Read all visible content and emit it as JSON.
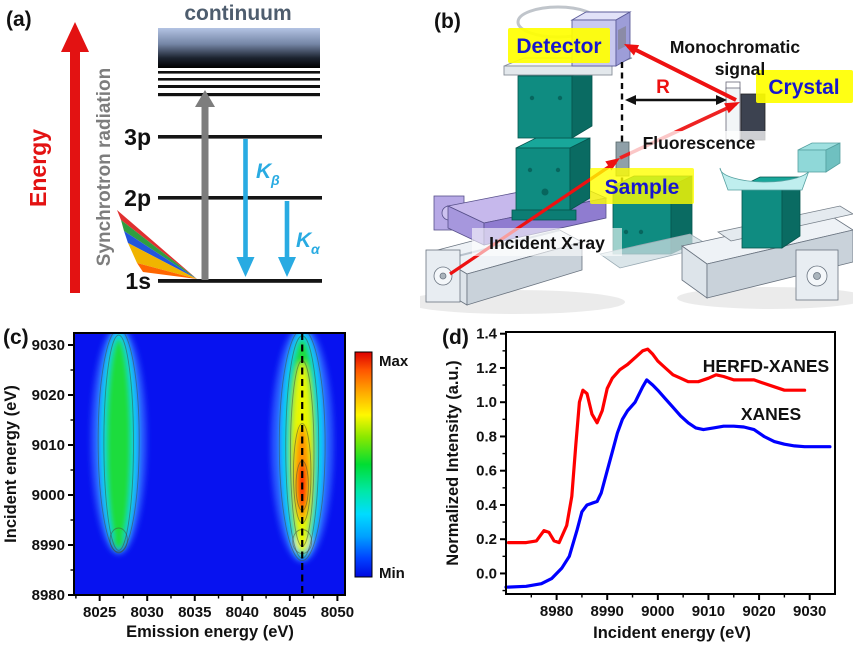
{
  "figure": {
    "panel_a": {
      "tag": "(a)",
      "energy_arrow_label": "Energy",
      "synchrotron_label": "Synchrotron radiation",
      "continuum_label": "continuum",
      "level_3p": "3p",
      "level_2p": "2p",
      "level_1s": "1s",
      "k_letter": "K",
      "beta_sub": "β",
      "alpha_sub": "α",
      "colors": {
        "energy_red": "#e31212",
        "arrow_cyan": "#29abe2",
        "synchrotron_gray": "#7d7d7d",
        "continuum_text": "#4e5d6e"
      }
    },
    "panel_b": {
      "tag": "(b)",
      "detector_label": "Detector",
      "monochromatic_line1": "Monochromatic",
      "monochromatic_line2": "signal",
      "radius_label": "R",
      "crystal_label": "Crystal",
      "fluorescence_label": "Fluorescence",
      "sample_label": "Sample",
      "incident_label": "Incident X-ray",
      "colors": {
        "highlight_yellow": "#ffff00",
        "label_blue": "#1717cf",
        "beam_red": "#ee1111",
        "stage_teal": "#0f8c81",
        "stage_purple": "#c6b8ec",
        "stage_white": "#eef2f6"
      }
    },
    "panel_c": {
      "tag": "(c)"
    },
    "panel_d": {
      "tag": "(d)"
    }
  },
  "chart_data": [
    {
      "panel": "c",
      "type": "heatmap",
      "xlabel": "Emission energy (eV)",
      "ylabel": "Incident energy (eV)",
      "xlim": [
        8022.3,
        8050.8
      ],
      "ylim": [
        8980,
        9032.4
      ],
      "xticks": [
        8025,
        8030,
        8035,
        8040,
        8045,
        8050
      ],
      "yticks": [
        8980,
        8990,
        9000,
        9010,
        9020,
        9030
      ],
      "colorbar": {
        "max_label": "Max",
        "min_label": "Min"
      },
      "dashed_line_x": 8046.3,
      "background": "min-blue",
      "bands": [
        {
          "name": "K-beta-prime emission band",
          "emission_center": 8027,
          "emission_width": 4.0,
          "incident_range": [
            8989,
            9033
          ],
          "peak_incident": 9002,
          "relative_intensity": 0.55,
          "foot": {
            "incident": 8991,
            "intensity": 0.5
          }
        },
        {
          "name": "K-beta-1,3 emission band",
          "emission_center": 8046.3,
          "emission_width": 4.5,
          "incident_range": [
            8987.5,
            9033
          ],
          "peak_incident": 8999.5,
          "relative_intensity": 1.0,
          "foot": {
            "incident": 8990.7,
            "intensity": 0.85
          }
        }
      ]
    },
    {
      "panel": "d",
      "type": "line",
      "xlabel": "Incident energy (eV)",
      "ylabel": "Normalized Intensity (a.u.)",
      "xlim": [
        8970,
        9035
      ],
      "ylim": [
        -0.12,
        1.41
      ],
      "xticks": [
        8980,
        8990,
        9000,
        9010,
        9020,
        9030
      ],
      "yticks": [
        0.0,
        0.2,
        0.4,
        0.6,
        0.8,
        1.0,
        1.2,
        1.4
      ],
      "series": [
        {
          "name": "HERFD-XANES",
          "color": "#ff0000",
          "x": [
            8970.5,
            8974,
            8976,
            8977.5,
            8978.5,
            8979.5,
            8980.5,
            8982,
            8983,
            8983.8,
            8984.5,
            8985.2,
            8986,
            8987,
            8988,
            8989,
            8990,
            8991,
            8992.5,
            8994,
            8995.5,
            8997,
            8998,
            8999,
            9000,
            9001.5,
            9003,
            9004.5,
            9006,
            9008,
            9010,
            9011.5,
            9013,
            9015,
            9017,
            9019,
            9021,
            9023,
            9025,
            9027,
            9029
          ],
          "y": [
            0.18,
            0.18,
            0.19,
            0.25,
            0.24,
            0.19,
            0.18,
            0.28,
            0.45,
            0.75,
            1.0,
            1.07,
            1.05,
            0.93,
            0.88,
            0.95,
            1.08,
            1.14,
            1.19,
            1.22,
            1.26,
            1.3,
            1.31,
            1.28,
            1.24,
            1.2,
            1.16,
            1.14,
            1.12,
            1.12,
            1.14,
            1.16,
            1.15,
            1.13,
            1.13,
            1.13,
            1.11,
            1.09,
            1.07,
            1.07,
            1.07
          ]
        },
        {
          "name": "XANES",
          "color": "#0000ff",
          "x": [
            8970,
            8974,
            8977,
            8979,
            8981,
            8982.5,
            8984,
            8985,
            8986,
            8987,
            8988,
            8988.8,
            8990,
            8991,
            8992,
            8993,
            8994,
            8995.5,
            8997,
            8997.8,
            8999,
            9000,
            9001.5,
            9003,
            9004.5,
            9006,
            9007.5,
            9009,
            9011,
            9013,
            9015,
            9017,
            9019,
            9021,
            9023,
            9025,
            9027,
            9029,
            9031,
            9034
          ],
          "y": [
            -0.08,
            -0.075,
            -0.06,
            -0.03,
            0.03,
            0.1,
            0.25,
            0.36,
            0.4,
            0.41,
            0.42,
            0.47,
            0.6,
            0.71,
            0.82,
            0.9,
            0.95,
            1.0,
            1.09,
            1.13,
            1.1,
            1.07,
            1.02,
            0.97,
            0.92,
            0.88,
            0.85,
            0.84,
            0.85,
            0.86,
            0.86,
            0.855,
            0.84,
            0.8,
            0.77,
            0.755,
            0.745,
            0.74,
            0.74,
            0.74
          ]
        }
      ]
    }
  ]
}
